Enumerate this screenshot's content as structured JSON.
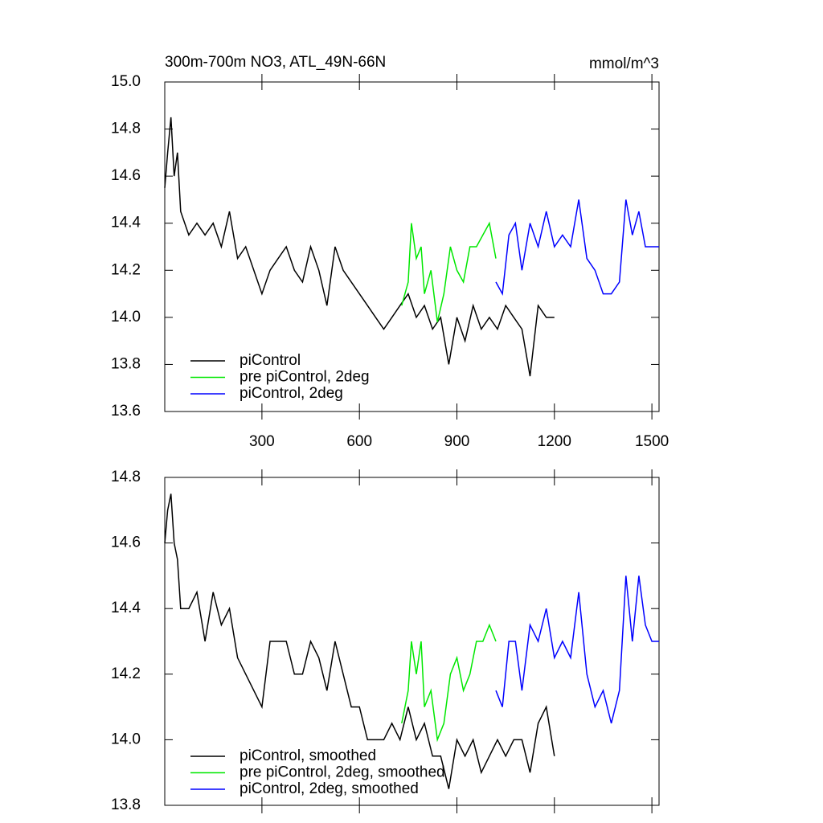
{
  "chart_data": [
    {
      "type": "line",
      "title": "300m-700m NO3, ATL_49N-66N",
      "units": "mmol/m^3",
      "xlim": [
        1,
        1522
      ],
      "xticks": [
        300,
        600,
        900,
        1200,
        1500
      ],
      "ylim": [
        13.6,
        15.0
      ],
      "yticks": [
        13.6,
        13.8,
        {
          "value": 14.0,
          "label": "14.0"
        },
        14.2,
        14.4,
        14.6,
        14.8,
        {
          "value": 15.0,
          "label": "15.0"
        }
      ],
      "legend": "lower left",
      "series": [
        {
          "name": "piControl",
          "color": "#000000",
          "x": [
            1,
            10,
            20,
            30,
            40,
            50,
            75,
            100,
            125,
            150,
            175,
            200,
            225,
            250,
            275,
            300,
            325,
            350,
            375,
            400,
            425,
            450,
            475,
            500,
            525,
            550,
            575,
            600,
            625,
            650,
            675,
            700,
            725,
            750,
            775,
            800,
            825,
            850,
            875,
            900,
            925,
            950,
            975,
            1000,
            1025,
            1050,
            1075,
            1100,
            1125,
            1150,
            1175,
            1200
          ],
          "values": [
            14.55,
            14.7,
            14.85,
            14.6,
            14.7,
            14.45,
            14.35,
            14.4,
            14.35,
            14.4,
            14.3,
            14.45,
            14.25,
            14.3,
            14.2,
            14.1,
            14.2,
            14.25,
            14.3,
            14.2,
            14.15,
            14.3,
            14.2,
            14.05,
            14.3,
            14.2,
            14.15,
            14.1,
            14.05,
            14.0,
            13.95,
            14.0,
            14.05,
            14.1,
            14.0,
            14.05,
            13.95,
            14.0,
            13.8,
            14.0,
            13.9,
            14.05,
            13.95,
            14.0,
            13.95,
            14.05,
            14.0,
            13.95,
            13.75,
            14.05,
            14.0,
            14.0
          ]
        },
        {
          "name": "pre piControl, 2deg",
          "color": "#00e800",
          "x": [
            730,
            750,
            760,
            775,
            790,
            800,
            820,
            840,
            860,
            880,
            900,
            920,
            940,
            960,
            980,
            1000,
            1020
          ],
          "values": [
            14.05,
            14.15,
            14.4,
            14.25,
            14.3,
            14.1,
            14.2,
            13.98,
            14.1,
            14.3,
            14.2,
            14.15,
            14.3,
            14.3,
            14.35,
            14.4,
            14.25
          ]
        },
        {
          "name": "piControl, 2deg",
          "color": "#0000ff",
          "x": [
            1020,
            1040,
            1060,
            1080,
            1100,
            1125,
            1150,
            1175,
            1200,
            1225,
            1250,
            1275,
            1300,
            1325,
            1350,
            1375,
            1400,
            1420,
            1440,
            1460,
            1480,
            1500,
            1522
          ],
          "values": [
            14.15,
            14.1,
            14.35,
            14.4,
            14.2,
            14.4,
            14.3,
            14.45,
            14.3,
            14.35,
            14.3,
            14.5,
            14.25,
            14.2,
            14.1,
            14.1,
            14.15,
            14.5,
            14.35,
            14.45,
            14.3,
            14.3,
            14.3
          ]
        }
      ]
    },
    {
      "type": "line",
      "xlim": [
        1,
        1522
      ],
      "xticks": [
        300,
        600,
        900,
        1200,
        1500
      ],
      "ylim": [
        13.8,
        14.8
      ],
      "yticks": [
        13.8,
        {
          "value": 14.0,
          "label": "14.0"
        },
        14.2,
        14.4,
        14.6,
        14.8
      ],
      "legend": "lower left",
      "series": [
        {
          "name": "piControl, smoothed",
          "color": "#000000",
          "x": [
            1,
            10,
            20,
            30,
            40,
            50,
            75,
            100,
            125,
            150,
            175,
            200,
            225,
            250,
            275,
            300,
            325,
            350,
            375,
            400,
            425,
            450,
            475,
            500,
            525,
            550,
            575,
            600,
            625,
            650,
            675,
            700,
            725,
            750,
            775,
            800,
            825,
            850,
            875,
            900,
            925,
            950,
            975,
            1000,
            1025,
            1050,
            1075,
            1100,
            1125,
            1150,
            1175,
            1200
          ],
          "values": [
            14.6,
            14.7,
            14.75,
            14.6,
            14.55,
            14.4,
            14.4,
            14.45,
            14.3,
            14.45,
            14.35,
            14.4,
            14.25,
            14.2,
            14.15,
            14.1,
            14.3,
            14.3,
            14.3,
            14.2,
            14.2,
            14.3,
            14.25,
            14.15,
            14.3,
            14.2,
            14.1,
            14.1,
            14.0,
            14.0,
            14.0,
            14.05,
            14.0,
            14.1,
            14.0,
            14.05,
            13.95,
            13.95,
            13.85,
            14.0,
            13.95,
            14.0,
            13.9,
            13.95,
            14.0,
            13.95,
            14.0,
            14.0,
            13.9,
            14.05,
            14.1,
            13.95
          ]
        },
        {
          "name": "pre piControl, 2deg, smoothed",
          "color": "#00e800",
          "x": [
            730,
            750,
            760,
            775,
            790,
            800,
            820,
            840,
            860,
            880,
            900,
            920,
            940,
            960,
            980,
            1000,
            1020
          ],
          "values": [
            14.05,
            14.15,
            14.3,
            14.2,
            14.3,
            14.1,
            14.15,
            14.0,
            14.05,
            14.2,
            14.25,
            14.15,
            14.2,
            14.3,
            14.3,
            14.35,
            14.3
          ]
        },
        {
          "name": "piControl, 2deg, smoothed",
          "color": "#0000ff",
          "x": [
            1020,
            1040,
            1060,
            1080,
            1100,
            1125,
            1150,
            1175,
            1200,
            1225,
            1250,
            1275,
            1300,
            1325,
            1350,
            1375,
            1400,
            1420,
            1440,
            1460,
            1480,
            1500,
            1522
          ],
          "values": [
            14.15,
            14.1,
            14.3,
            14.3,
            14.15,
            14.35,
            14.3,
            14.4,
            14.25,
            14.3,
            14.25,
            14.45,
            14.2,
            14.1,
            14.15,
            14.05,
            14.15,
            14.5,
            14.3,
            14.5,
            14.35,
            14.3,
            14.3
          ]
        }
      ]
    }
  ]
}
